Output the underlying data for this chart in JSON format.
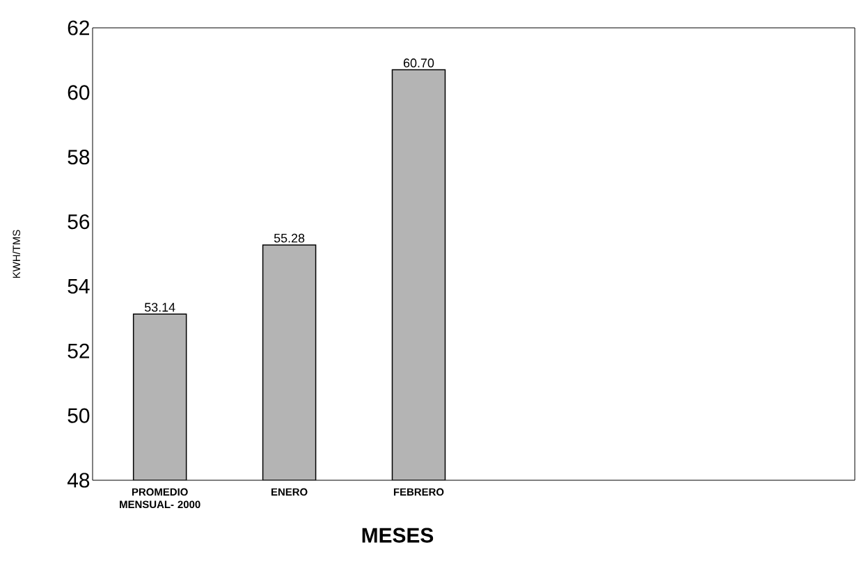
{
  "chart_data": {
    "type": "bar",
    "xlabel": "MESES",
    "ylabel": "KWH/TMS",
    "categories": [
      "PROMEDIO MENSUAL- 2000",
      "ENERO",
      "FEBRERO",
      null,
      null,
      null
    ],
    "values": [
      53.14,
      55.28,
      60.7,
      null,
      null,
      null
    ],
    "value_labels": [
      "53.14",
      "55.28",
      "60.70",
      null,
      null,
      null
    ],
    "color": "#b4b4b4",
    "ylim": [
      48,
      62
    ],
    "yticks": [
      48,
      50,
      52,
      54,
      56,
      58,
      60,
      62
    ]
  }
}
